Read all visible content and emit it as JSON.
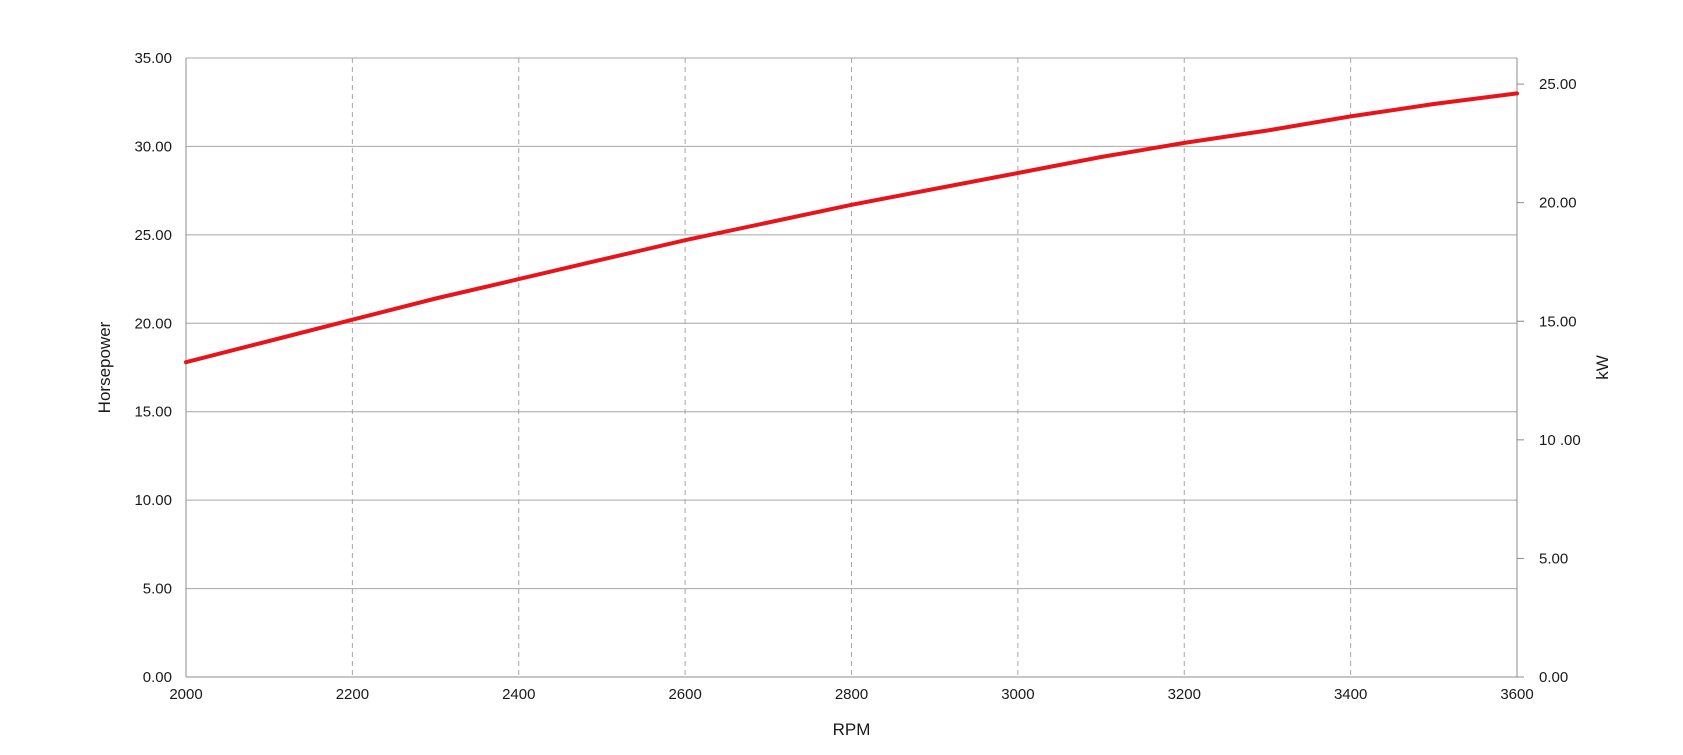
{
  "chart_data": {
    "type": "line",
    "title": "",
    "xlabel": "RPM",
    "ylabel": "Horsepower",
    "y2label": "kW",
    "xlim": [
      2000,
      3600
    ],
    "ylim": [
      0,
      35
    ],
    "y2lim": [
      0,
      26.1
    ],
    "x_ticks": [
      "2000",
      "2200",
      "2400",
      "2600",
      "2800",
      "3000",
      "3200",
      "3400",
      "3600"
    ],
    "y_ticks": [
      "0.00",
      "5.00",
      "10.00",
      "15.00",
      "20.00",
      "25.00",
      "30.00",
      "35.00"
    ],
    "y2_ticks": [
      {
        "label": "0.00",
        "value": 0
      },
      {
        "label": "5.00",
        "value": 5
      },
      {
        "label": "10 .00",
        "value": 10
      },
      {
        "label": "15.00",
        "value": 15
      },
      {
        "label": "20.00",
        "value": 20
      },
      {
        "label": "25.00",
        "value": 25
      }
    ],
    "grid": {
      "horizontal": "solid",
      "vertical": "dashed"
    },
    "series": [
      {
        "color": "#e8141b",
        "x": [
          2000,
          2100,
          2200,
          2300,
          2400,
          2500,
          2600,
          2700,
          2800,
          2900,
          3000,
          3100,
          3200,
          3300,
          3400,
          3500,
          3600
        ],
        "y": [
          17.8,
          19.0,
          20.2,
          21.4,
          22.5,
          23.6,
          24.7,
          25.7,
          26.7,
          27.6,
          28.5,
          29.4,
          30.2,
          30.9,
          31.7,
          32.4,
          33.0
        ]
      }
    ]
  }
}
